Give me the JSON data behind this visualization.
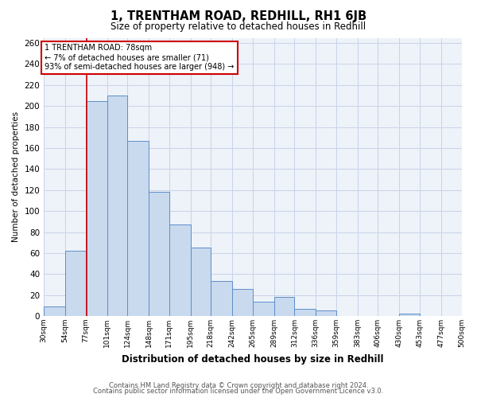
{
  "title": "1, TRENTHAM ROAD, REDHILL, RH1 6JB",
  "subtitle": "Size of property relative to detached houses in Redhill",
  "xlabel": "Distribution of detached houses by size in Redhill",
  "ylabel": "Number of detached properties",
  "bin_edges": [
    30,
    54,
    77,
    101,
    124,
    148,
    171,
    195,
    218,
    242,
    265,
    289,
    312,
    336,
    359,
    383,
    406,
    430,
    453,
    477,
    500
  ],
  "bin_labels": [
    "30sqm",
    "54sqm",
    "77sqm",
    "101sqm",
    "124sqm",
    "148sqm",
    "171sqm",
    "195sqm",
    "218sqm",
    "242sqm",
    "265sqm",
    "289sqm",
    "312sqm",
    "336sqm",
    "359sqm",
    "383sqm",
    "406sqm",
    "430sqm",
    "453sqm",
    "477sqm",
    "500sqm"
  ],
  "bar_heights": [
    9,
    62,
    205,
    210,
    167,
    118,
    87,
    65,
    33,
    26,
    14,
    18,
    7,
    5,
    0,
    0,
    0,
    2,
    0,
    0
  ],
  "bar_facecolor": "#c9d9ee",
  "bar_edgecolor": "#5b8fc9",
  "ylim": [
    0,
    265
  ],
  "yticks": [
    0,
    20,
    40,
    60,
    80,
    100,
    120,
    140,
    160,
    180,
    200,
    220,
    240,
    260
  ],
  "vline_x": 78,
  "vline_color": "#cc0000",
  "annotation_title": "1 TRENTHAM ROAD: 78sqm",
  "annotation_line1": "← 7% of detached houses are smaller (71)",
  "annotation_line2": "93% of semi-detached houses are larger (948) →",
  "annotation_box_color": "#cc0000",
  "grid_color": "#c8d4e8",
  "background_color": "#eef2f9",
  "footer_line1": "Contains HM Land Registry data © Crown copyright and database right 2024.",
  "footer_line2": "Contains public sector information licensed under the Open Government Licence v3.0."
}
